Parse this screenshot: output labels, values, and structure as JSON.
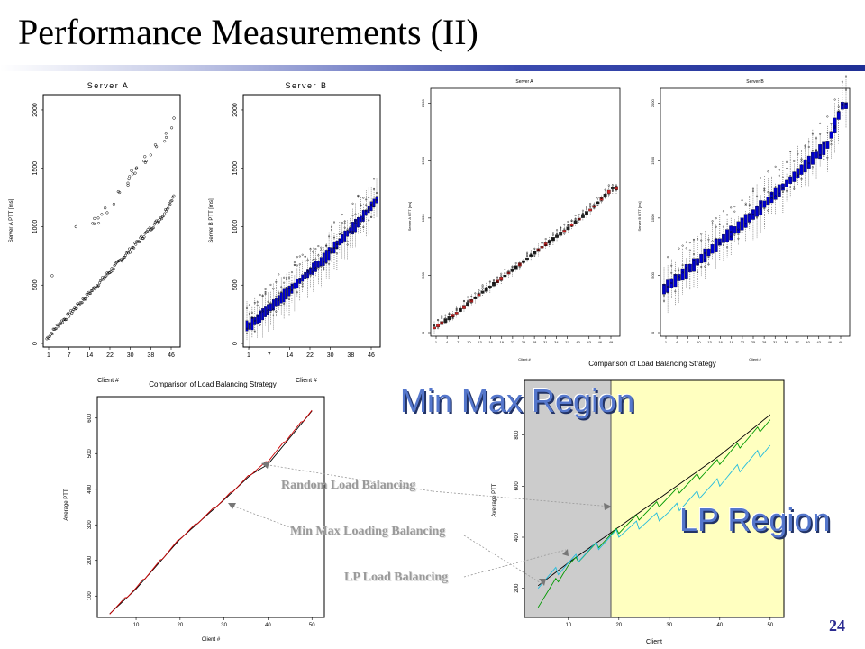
{
  "slide": {
    "title": "Performance Measurements (II)",
    "page_number": "24"
  },
  "regions": {
    "min_max": "Min Max Region",
    "lp": "LP Region"
  },
  "annotations": {
    "random": "Random Load Balancing",
    "minmax": "Min Max Loading Balancing",
    "lp": "LP Load Balancing"
  },
  "captions": {
    "top_left": "Comparison of Load Balancing Strategy",
    "top_right": "Comparison of Load Balancing Strategy"
  },
  "colors": {
    "accent": "#2a2a90",
    "region_label": "#5577cc",
    "lp_region_bg": "#ffffc0",
    "minmax_region_bg": "#cccccc",
    "box_blue": "#0000cc",
    "box_red": "#cc2222",
    "series_black": "#000000",
    "series_green": "#009900",
    "series_cyan": "#22bbdd",
    "series_red": "#cc0000"
  },
  "chart_data": [
    {
      "id": "server-a-left",
      "type": "scatter",
      "title": "Server A",
      "xlabel": "Client #",
      "ylabel": "Server A PTT [ms]",
      "xticks": [
        "1",
        "7",
        "14",
        "22",
        "30",
        "38",
        "46"
      ],
      "yticks": [
        0,
        500,
        1000,
        1500,
        2000
      ],
      "ylim": [
        0,
        2100
      ],
      "xlim": [
        1,
        50
      ],
      "series": [
        {
          "x": [
            1,
            5,
            10,
            15,
            20,
            25,
            30,
            35,
            40,
            45,
            49
          ],
          "y": [
            40,
            150,
            260,
            380,
            500,
            620,
            740,
            860,
            980,
            1100,
            1270
          ]
        },
        {
          "x": [
            3,
            12,
            19,
            23,
            28,
            33,
            38,
            42,
            46,
            49
          ],
          "y": [
            580,
            1000,
            1070,
            1160,
            1300,
            1480,
            1600,
            1700,
            1800,
            1930
          ]
        }
      ]
    },
    {
      "id": "server-b-left",
      "type": "box",
      "title": "Server B",
      "xlabel": "Client #",
      "ylabel": "Server B PTT [ms]",
      "xticks": [
        "1",
        "7",
        "14",
        "22",
        "30",
        "38",
        "46"
      ],
      "yticks": [
        0,
        500,
        1000,
        1500,
        2000
      ],
      "ylim": [
        0,
        2100
      ],
      "xlim": [
        1,
        50
      ],
      "medians": {
        "x": [
          2,
          6,
          10,
          14,
          18,
          22,
          26,
          30,
          34,
          38,
          42,
          46,
          50
        ],
        "y": [
          150,
          230,
          310,
          390,
          470,
          560,
          640,
          720,
          820,
          920,
          1010,
          1120,
          1230
        ]
      }
    },
    {
      "id": "server-a-right",
      "type": "box",
      "title": "Server A",
      "xlabel": "Client #",
      "ylabel": "Server A RTT [ms]",
      "xticks": [
        "1",
        "4",
        "7",
        "10",
        "13",
        "16",
        "19",
        "22",
        "25",
        "28",
        "31",
        "34",
        "37",
        "40",
        "43",
        "46",
        "49"
      ],
      "yticks": [
        0,
        500,
        1000,
        1500,
        2000
      ],
      "ylim": [
        0,
        2100
      ],
      "xlim": [
        1,
        50
      ],
      "medians": {
        "x": [
          1,
          7,
          13,
          19,
          25,
          31,
          37,
          43,
          49
        ],
        "y": [
          40,
          170,
          330,
          470,
          620,
          770,
          910,
          1070,
          1260
        ]
      }
    },
    {
      "id": "server-b-right",
      "type": "box",
      "title": "Server B",
      "xlabel": "Client #",
      "ylabel": "Server B RTT [ms]",
      "xticks": [
        "1",
        "4",
        "7",
        "10",
        "13",
        "16",
        "19",
        "22",
        "25",
        "28",
        "31",
        "34",
        "37",
        "40",
        "43",
        "46",
        "49"
      ],
      "yticks": [
        0,
        500,
        1000,
        1500,
        2000
      ],
      "ylim": [
        0,
        2100
      ],
      "xlim": [
        1,
        50
      ],
      "medians": {
        "x": [
          1,
          5,
          9,
          13,
          17,
          21,
          25,
          29,
          33,
          37,
          41,
          45,
          49
        ],
        "y": [
          380,
          480,
          590,
          700,
          820,
          920,
          1030,
          1150,
          1270,
          1390,
          1520,
          1640,
          1980
        ]
      }
    },
    {
      "id": "average-ptt-bottom-left",
      "type": "line",
      "xlabel": "Client #",
      "ylabel": "Average PTT",
      "xticks": [
        10,
        20,
        30,
        40,
        50
      ],
      "yticks": [
        100,
        200,
        300,
        400,
        500,
        600
      ],
      "xlim": [
        2,
        52
      ],
      "ylim": [
        50,
        650
      ],
      "series": [
        {
          "color": "black",
          "x": [
            4,
            10,
            20,
            30,
            36,
            40,
            50
          ],
          "y": [
            50,
            120,
            260,
            370,
            440,
            470,
            620
          ]
        },
        {
          "color": "red",
          "x": [
            4,
            10,
            20,
            30,
            36,
            40,
            50
          ],
          "y": [
            52,
            123,
            262,
            372,
            442,
            480,
            622
          ]
        }
      ]
    },
    {
      "id": "average-rtt-bottom-right",
      "type": "line",
      "xlabel": "Client",
      "ylabel": "Ave rage PTT",
      "xticks": [
        10,
        20,
        30,
        40,
        50
      ],
      "yticks": [
        200,
        400,
        600,
        800
      ],
      "xlim": [
        2,
        52
      ],
      "ylim": [
        100,
        1000
      ],
      "series": [
        {
          "color": "black",
          "x": [
            4,
            10,
            20,
            30,
            40,
            50
          ],
          "y": [
            210,
            300,
            440,
            580,
            720,
            880
          ]
        },
        {
          "color": "green",
          "x": [
            4,
            10,
            20,
            30,
            40,
            50
          ],
          "y": [
            140,
            290,
            430,
            560,
            700,
            860
          ]
        },
        {
          "color": "cyan",
          "x": [
            4,
            10,
            20,
            30,
            40,
            50
          ],
          "y": [
            220,
            300,
            420,
            500,
            620,
            760
          ]
        }
      ]
    }
  ]
}
